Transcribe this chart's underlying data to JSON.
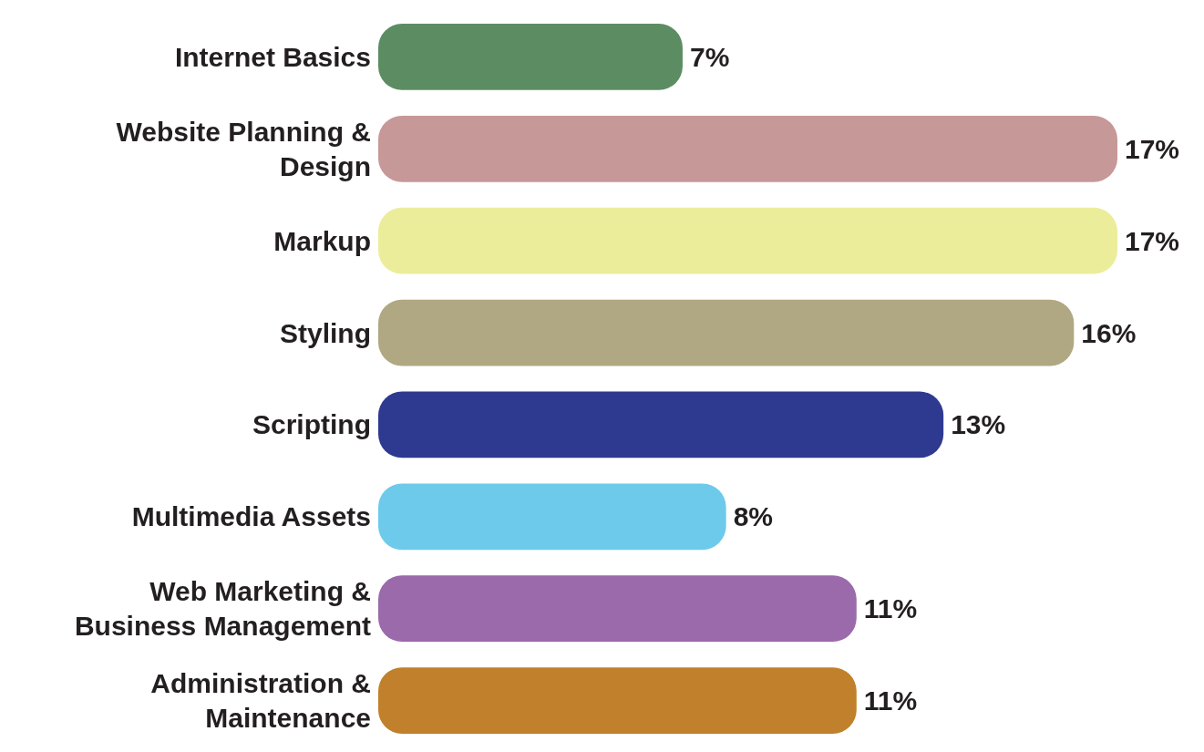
{
  "chart_data": {
    "type": "bar",
    "orientation": "horizontal",
    "categories": [
      "Internet Basics",
      "Website Planning &\nDesign",
      "Markup",
      "Styling",
      "Scripting",
      "Multimedia Assets",
      "Web Marketing &\nBusiness Management",
      "Administration &\nMaintenance"
    ],
    "values": [
      7,
      17,
      17,
      16,
      13,
      8,
      11,
      11
    ],
    "colors": [
      "#5c8d62",
      "#c79898",
      "#eced9a",
      "#b0a882",
      "#2e3a90",
      "#6dcaea",
      "#9b6aab",
      "#c0802c"
    ],
    "value_labels": [
      "7%",
      "17%",
      "17%",
      "16%",
      "13%",
      "8%",
      "11%",
      "11%"
    ]
  }
}
